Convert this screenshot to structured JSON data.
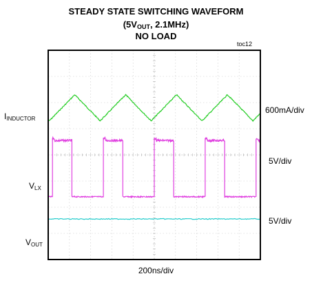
{
  "chart_data": {
    "type": "line",
    "title_line1": "STEADY STATE SWITCHING WAVEFORM",
    "title_line2_pre": "(5V",
    "title_line2_sub": "OUT",
    "title_line2_post": ", 2.1MHz)",
    "title_line3": "NO LOAD",
    "figure_id": "toc12",
    "xlabel": "200ns/div",
    "grid": true,
    "divisions": {
      "x": 10,
      "y": 8
    },
    "channels": [
      {
        "id": "inductor",
        "label_main": "I",
        "label_sub": "INDUCTOR",
        "scale": "600mA/div",
        "color": "#22cc22",
        "waveform": "triangle",
        "period_div": 2.4,
        "first_peak_div": 1.25,
        "min_level_div": 5.3,
        "max_level_div": 6.3
      },
      {
        "id": "lx",
        "label_main": "V",
        "label_sub": "LX",
        "scale": "5V/div",
        "color": "#e040e0",
        "waveform": "square",
        "period_div": 2.4,
        "first_rise_div": 0.2,
        "duty": 0.38,
        "high_level_div": 4.55,
        "low_level_div": 2.4
      },
      {
        "id": "out",
        "label_main": "V",
        "label_sub": "OUT",
        "scale": "5V/div",
        "color": "#22cccc",
        "waveform": "dc",
        "level_div": 1.55
      }
    ]
  }
}
